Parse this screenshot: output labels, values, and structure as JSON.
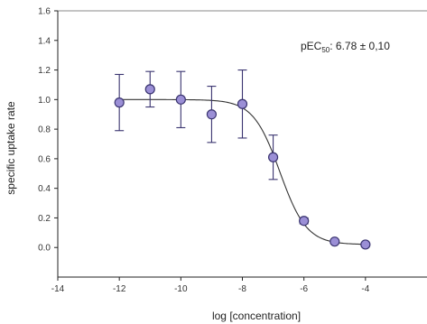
{
  "chart_data": {
    "type": "scatter",
    "title": "",
    "xlabel": "log [concentration]",
    "ylabel": "specific uptake rate",
    "xlim": [
      -14,
      -2
    ],
    "ylim": [
      -0.2,
      1.6
    ],
    "xticks": [
      -14,
      -12,
      -10,
      -8,
      -6,
      -4
    ],
    "xtick_labels": [
      "-14",
      "-12",
      "-10",
      "-8",
      "-6",
      "-4"
    ],
    "yticks": [
      0.0,
      0.2,
      0.4,
      0.6,
      0.8,
      1.0,
      1.2,
      1.4,
      1.6
    ],
    "ytick_labels": [
      "0.0",
      "0.2",
      "0.4",
      "0.6",
      "0.8",
      "1.0",
      "1.2",
      "1.4",
      "1.6"
    ],
    "grid": false,
    "legend": "none",
    "annotation": {
      "prefix": "pEC",
      "subscript": "50",
      "suffix": ": 6.78 ± 0,10"
    },
    "points": [
      {
        "x": -12,
        "y": 0.98,
        "err": 0.19
      },
      {
        "x": -11,
        "y": 1.07,
        "err": 0.12
      },
      {
        "x": -10,
        "y": 1.0,
        "err": 0.19
      },
      {
        "x": -9,
        "y": 0.9,
        "err": 0.19
      },
      {
        "x": -8,
        "y": 0.97,
        "err": 0.23
      },
      {
        "x": -7,
        "y": 0.61,
        "err": 0.15
      },
      {
        "x": -6,
        "y": 0.18,
        "err": 0.02
      },
      {
        "x": -5,
        "y": 0.04,
        "err": 0.01
      },
      {
        "x": -4,
        "y": 0.02,
        "err": 0.01
      }
    ],
    "fit_curve": {
      "model": "sigmoidal dose-response",
      "top": 1.0,
      "bottom": 0.02,
      "log_ec50": -6.78,
      "hill_slope": -1.0,
      "x_range": [
        -12,
        -4
      ]
    },
    "colors": {
      "marker_fill": "#9b8fd6",
      "marker_stroke": "#3a3470",
      "curve": "#333333",
      "axis": "#222222",
      "top_line": "#888888"
    }
  }
}
